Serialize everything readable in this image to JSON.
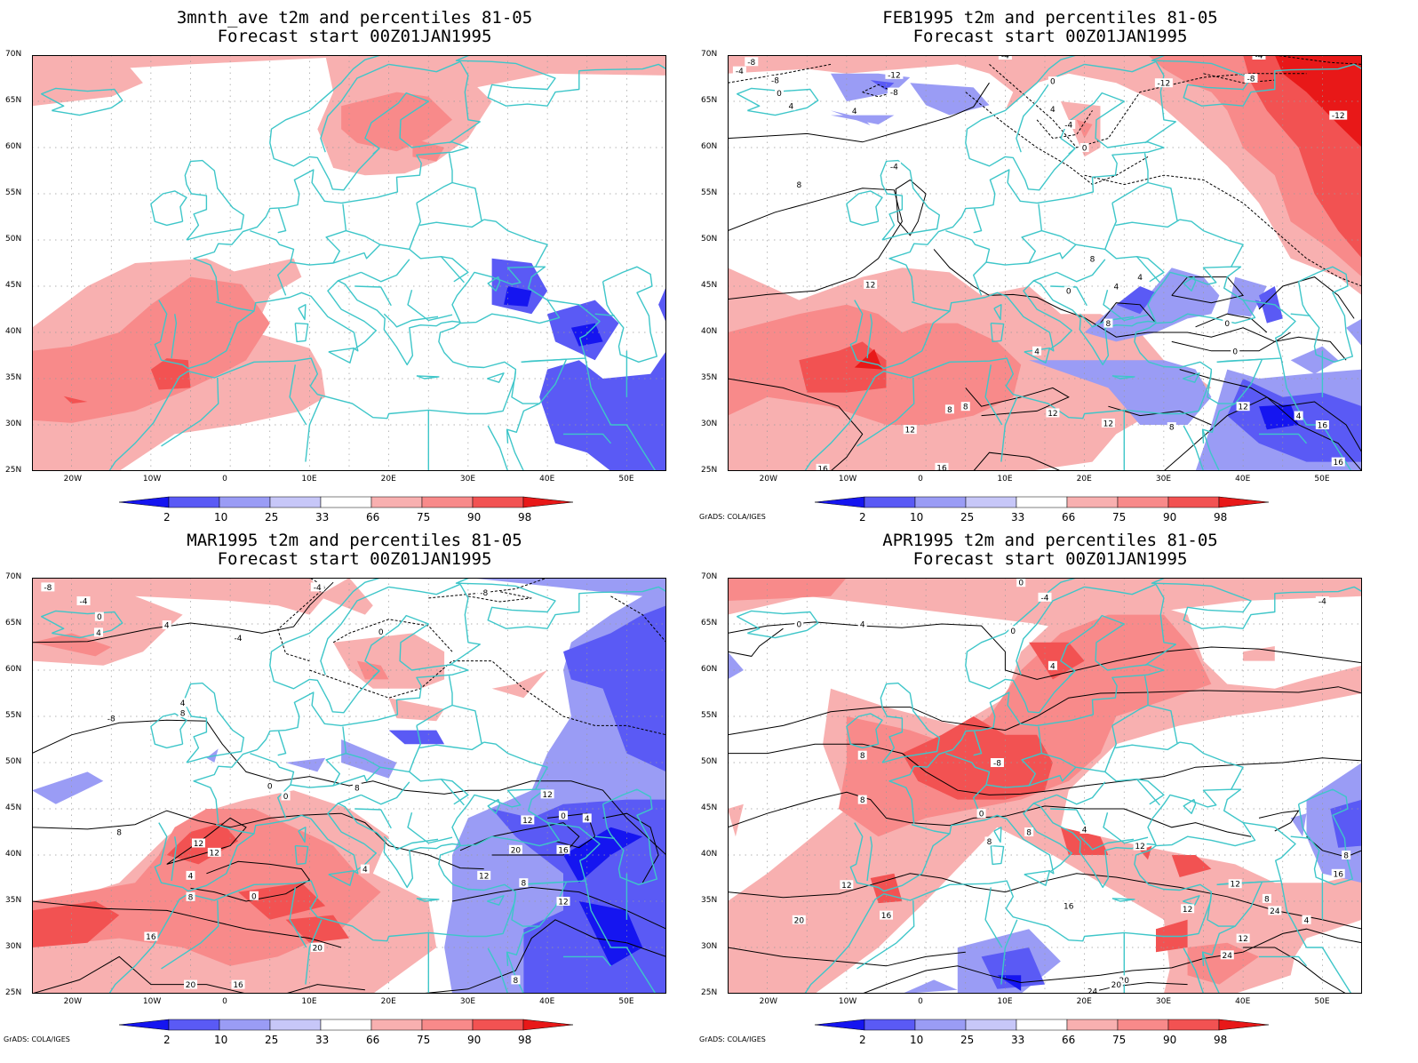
{
  "colors": {
    "coast": "#3ec6c9",
    "grid": "#9a9a9a",
    "contour": "#000000",
    "cold": [
      "#1515f0",
      "#5a5af5",
      "#9a9cf5",
      "#c7c7f8"
    ],
    "warm": [
      "#f8b0b0",
      "#f88a8a",
      "#f25252",
      "#e81818"
    ]
  },
  "colorbar": {
    "labels": [
      "2",
      "10",
      "25",
      "33",
      "66",
      "75",
      "90",
      "98"
    ],
    "colors": [
      "#1515f0",
      "#5a5af5",
      "#9a9cf5",
      "#c7c7f8",
      "#ffffff",
      "#f8b0b0",
      "#f88a8a",
      "#f25252",
      "#e81818"
    ]
  },
  "axes": {
    "lat_labels": [
      "70N",
      "65N",
      "60N",
      "55N",
      "50N",
      "45N",
      "40N",
      "35N",
      "30N",
      "25N"
    ],
    "lon_labels": [
      "20W",
      "10W",
      "0",
      "10E",
      "20E",
      "30E",
      "40E",
      "50E"
    ]
  },
  "panels": [
    {
      "title": "3mnth_ave t2m and percentiles 81-05",
      "subtitle": "Forecast start 00Z01JAN1995",
      "credit": "",
      "contour_labels": []
    },
    {
      "title": "FEB1995 t2m and percentiles 81-05",
      "subtitle": "Forecast start 00Z01JAN1995",
      "credit": "GrADS: COLA/IGES",
      "contour_labels": [
        "-8",
        "-4",
        "-8",
        "0",
        "4",
        "4",
        "8",
        "-12",
        "-8",
        "-4",
        "0",
        "-12",
        "-8",
        "-4",
        "-12",
        "0",
        "-4",
        "4",
        "-4",
        "8",
        "12",
        "0",
        "4",
        "0",
        "4",
        "0",
        "8",
        "4",
        "12",
        "8",
        "8",
        "12",
        "16",
        "16",
        "12",
        "8",
        "12",
        "4",
        "16",
        "16"
      ]
    },
    {
      "title": "MAR1995 t2m and percentiles 81-05",
      "subtitle": "Forecast start 00Z01JAN1995",
      "credit": "GrADS: COLA/IGES",
      "contour_labels": [
        "-8",
        "-4",
        "0",
        "4",
        "4",
        "-8",
        "-4",
        "0",
        "-4",
        "-8",
        "8",
        "4",
        "0",
        "0",
        "8",
        "12",
        "12",
        "8",
        "12",
        "12",
        "4",
        "8",
        "0",
        "4",
        "0",
        "4",
        "12",
        "8",
        "12",
        "16",
        "20",
        "20",
        "16",
        "20",
        "16",
        "8"
      ]
    },
    {
      "title": "APR1995 t2m and percentiles 81-05",
      "subtitle": "Forecast start 00Z01JAN1995",
      "credit": "GrADS: COLA/IGES",
      "contour_labels": [
        "0",
        "-4",
        "-4",
        "0",
        "4",
        "0",
        "4",
        "8",
        "-8",
        "0",
        "4",
        "8",
        "8",
        "8",
        "12",
        "12",
        "8",
        "12",
        "12",
        "16",
        "16",
        "16",
        "12",
        "20",
        "20",
        "24",
        "20",
        "24",
        "24",
        "4",
        "8"
      ]
    }
  ]
}
